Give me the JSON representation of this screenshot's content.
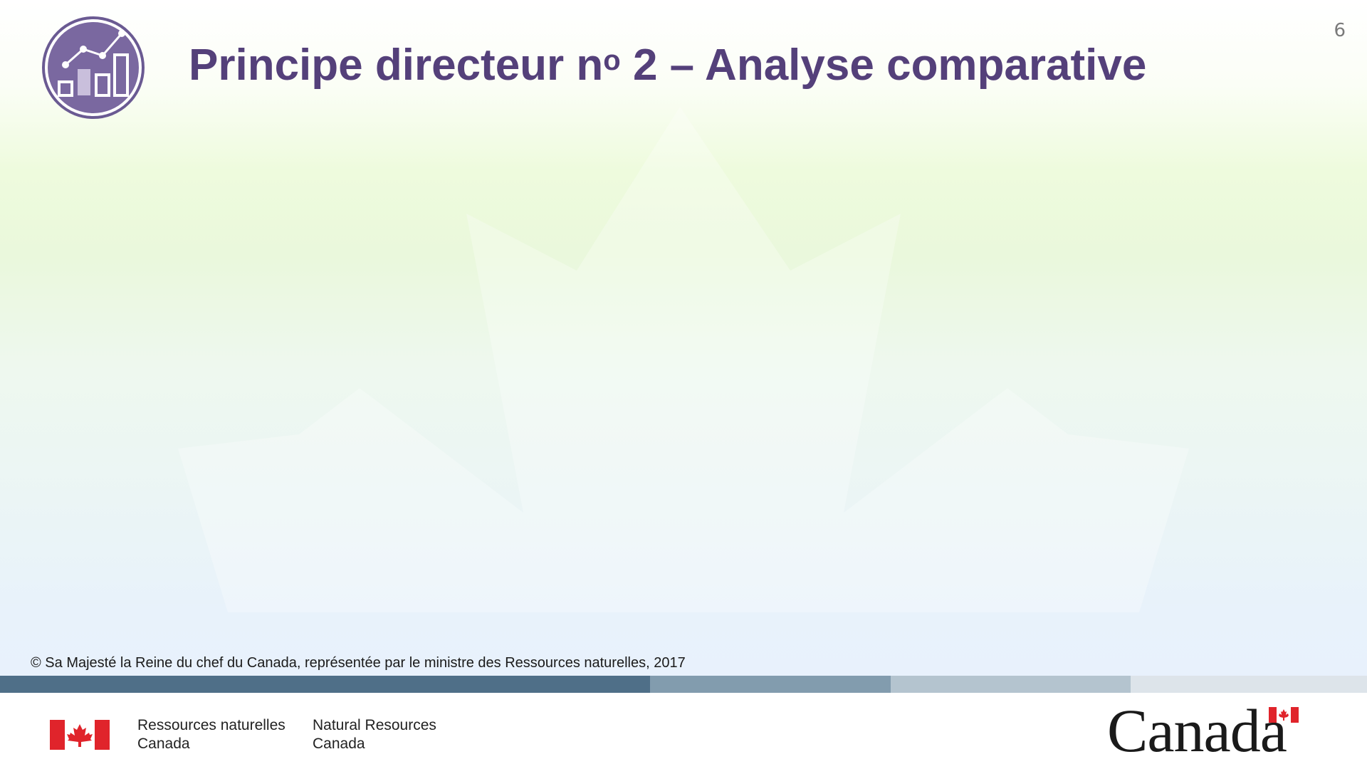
{
  "page_number": "6",
  "title": {
    "prefix": "Principe directeur n",
    "superscript": "o",
    "suffix": " 2 – Analyse comparative"
  },
  "icon": "line-and-bar-chart-icon",
  "copyright": "© Sa Majesté la Reine du chef du Canada, représentée par le ministre des Ressources naturelles, 2017",
  "footer": {
    "department_fr": {
      "line1": "Ressources naturelles",
      "line2": "Canada"
    },
    "department_en": {
      "line1": "Natural Resources",
      "line2": "Canada"
    },
    "wordmark": "Canada"
  },
  "colors": {
    "title": "#54407a",
    "accent": "#6a5a92",
    "band_dark": "#4f6f88",
    "flag_red": "#e0242b"
  }
}
